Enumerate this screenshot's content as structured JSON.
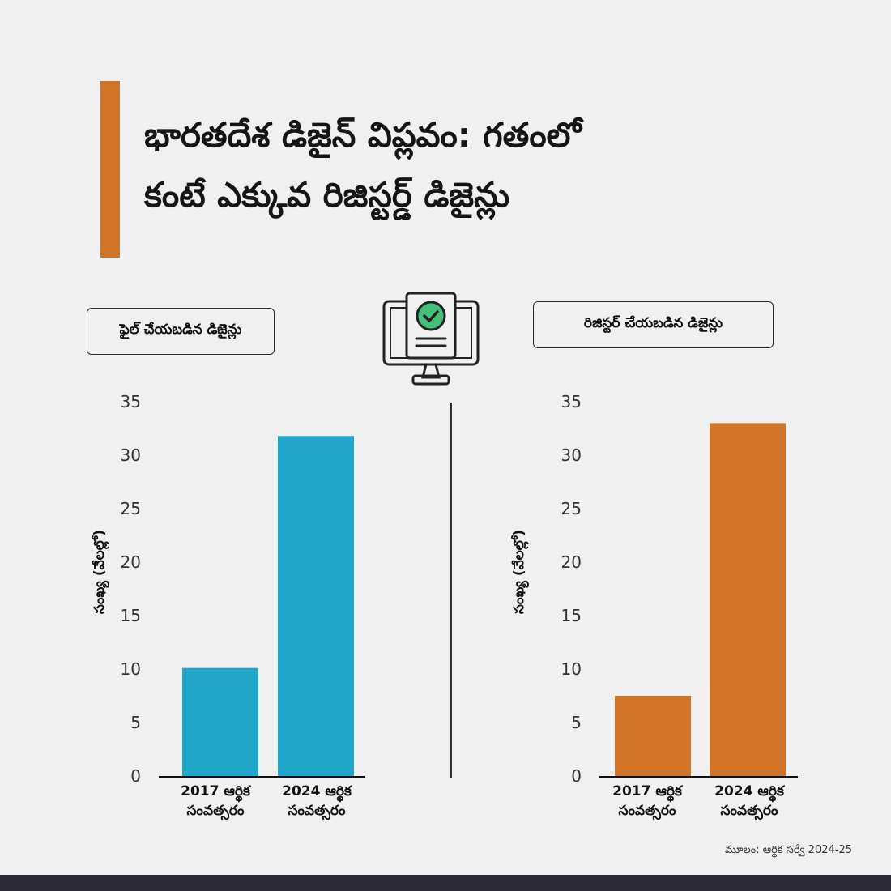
{
  "title": {
    "line1": "భారతదేశ డిజైన్ విప్లవం: గతంలో",
    "line2": "కంటే ఎక్కువ రిజిస్టర్డ్ డిజైన్లు"
  },
  "colors": {
    "accent": "#d07528",
    "filed_bar": "#1fa6c9",
    "registered_bar": "#d07528",
    "footer_band": "#2c2a36"
  },
  "icons": {
    "center": "monitor-checkmark-icon"
  },
  "source": "మూలం: ఆర్థిక సర్వే 2024-25",
  "chart_data": [
    {
      "type": "bar",
      "title": "ఫైల్ చేయబడిన డిజైన్లు",
      "categories": [
        [
          "2017 ఆర్థిక",
          "సంవత్సరం"
        ],
        [
          "2024 ఆర్థిక",
          "సంవత్సరం"
        ]
      ],
      "values": [
        10.1,
        31.8
      ],
      "ylabel": "సంఖ్య (వేలల్లో)",
      "ylim": [
        0,
        35
      ],
      "yticks": [
        0,
        5,
        10,
        15,
        20,
        25,
        30,
        35
      ],
      "grid": false,
      "color": "#1fa6c9"
    },
    {
      "type": "bar",
      "title": "రిజిస్టర్ చేయబడిన డిజైన్లు",
      "categories": [
        [
          "2017 ఆర్థిక",
          "సంవత్సరం"
        ],
        [
          "2024 ఆర్థిక",
          "సంవత్సరం"
        ]
      ],
      "values": [
        7.5,
        33.0
      ],
      "ylabel": "సంఖ్య (వేలల్లో)",
      "ylim": [
        0,
        35
      ],
      "yticks": [
        0,
        5,
        10,
        15,
        20,
        25,
        30,
        35
      ],
      "grid": false,
      "color": "#d07528"
    }
  ]
}
